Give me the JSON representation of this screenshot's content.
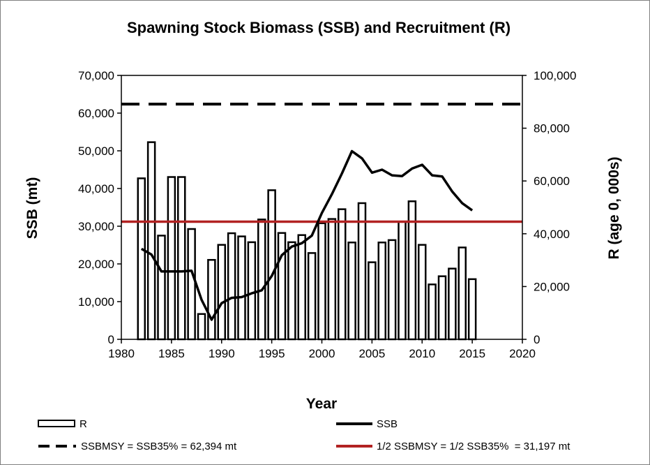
{
  "chart_data": {
    "type": "bar+line",
    "title": "Spawning Stock Biomass (SSB) and Recruitment (R)",
    "xlabel": "Year",
    "ylabel_left": "SSB (mt)",
    "ylabel_right": "R (age 0, 000s)",
    "xlim": [
      1980,
      2020
    ],
    "ylim_left": [
      0,
      70000
    ],
    "ylim_right": [
      0,
      100000
    ],
    "x_ticks": [
      "1980",
      "1985",
      "1990",
      "1995",
      "2000",
      "2005",
      "2010",
      "2015",
      "2020"
    ],
    "y_left_ticks": [
      "0",
      "10,000",
      "20,000",
      "30,000",
      "40,000",
      "50,000",
      "60,000",
      "70,000"
    ],
    "y_right_ticks": [
      "0",
      "20,000",
      "40,000",
      "60,000",
      "80,000",
      "100,000"
    ],
    "grid": false,
    "legend_position": "bottom",
    "recruitment": {
      "name": "R",
      "axis": "right",
      "x": [
        1982,
        1983,
        1984,
        1985,
        1986,
        1987,
        1988,
        1989,
        1990,
        1991,
        1992,
        1993,
        1994,
        1995,
        1996,
        1997,
        1998,
        1999,
        2000,
        2001,
        2002,
        2003,
        2004,
        2005,
        2006,
        2007,
        2008,
        2009,
        2010,
        2011,
        2012,
        2013,
        2014,
        2015
      ],
      "values": [
        61000,
        74700,
        39300,
        61500,
        61500,
        41800,
        9600,
        30100,
        35800,
        40200,
        39000,
        36800,
        45400,
        56500,
        40300,
        36800,
        39500,
        32700,
        44000,
        45600,
        49300,
        36700,
        51600,
        29200,
        36700,
        37600,
        44500,
        52300,
        35800,
        20800,
        23900,
        26800,
        34800,
        22800
      ]
    },
    "ssb": {
      "name": "SSB",
      "axis": "left",
      "x": [
        1982,
        1983,
        1984,
        1985,
        1986,
        1987,
        1988,
        1989,
        1990,
        1991,
        1992,
        1993,
        1994,
        1995,
        1996,
        1997,
        1998,
        1999,
        2000,
        2001,
        2002,
        2003,
        2004,
        2005,
        2006,
        2007,
        2008,
        2009,
        2010,
        2011,
        2012,
        2013,
        2014,
        2015
      ],
      "values": [
        24000,
        22500,
        18000,
        18000,
        18000,
        18200,
        10500,
        5200,
        9600,
        11000,
        11200,
        12200,
        13000,
        16800,
        22300,
        24600,
        25500,
        27500,
        33500,
        38500,
        44000,
        49900,
        48000,
        44200,
        45000,
        43500,
        43300,
        45300,
        46300,
        43500,
        43200,
        39200,
        36100,
        34200
      ]
    },
    "reference_lines": [
      {
        "name": "SSBMSY = SSB35% = 62,394 mt",
        "value": 62394,
        "axis": "left",
        "style": "dashed",
        "color": "#000000"
      },
      {
        "name": "1/2 SSBMSY = 1/2 SSB35%  = 31,197 mt",
        "value": 31197,
        "axis": "left",
        "style": "solid",
        "color": "#b22222"
      }
    ]
  },
  "legend": {
    "r_label": "R",
    "ssb_label": "SSB",
    "msy_label": "SSBMSY = SSB35% = 62,394 mt",
    "half_msy_label": "1/2 SSBMSY = 1/2 SSB35%  = 31,197 mt"
  },
  "colors": {
    "bar_fill": "#ffffff",
    "bar_stroke": "#000000",
    "ssb_line": "#000000",
    "half_msy_line": "#b22222"
  }
}
